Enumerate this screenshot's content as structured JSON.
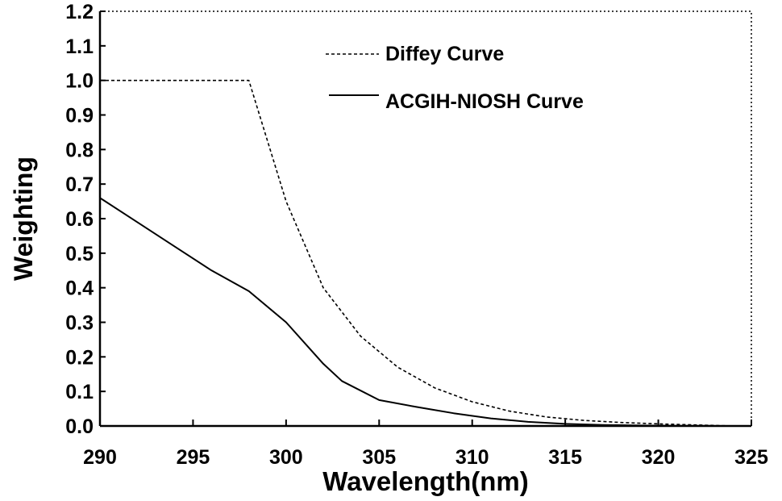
{
  "chart_data": {
    "type": "line",
    "title": "",
    "xlabel": "Wavelength(nm)",
    "ylabel": "Weighting",
    "xlim": [
      290,
      325
    ],
    "ylim": [
      0.0,
      1.2
    ],
    "x_ticks": [
      "290",
      "295",
      "300",
      "305",
      "310",
      "315",
      "320",
      "325"
    ],
    "y_ticks": [
      "0.0",
      "0.1",
      "0.2",
      "0.3",
      "0.4",
      "0.5",
      "0.6",
      "0.7",
      "0.8",
      "0.9",
      "1.0",
      "1.1",
      "1.2"
    ],
    "grid": false,
    "legend_position": "top-right",
    "series": [
      {
        "name": "Diffey Curve",
        "style": "dashed",
        "x": [
          290,
          298,
          300,
          302,
          304,
          306,
          308,
          310,
          312,
          314,
          316,
          318,
          320,
          322,
          324
        ],
        "y": [
          1.0,
          1.0,
          0.65,
          0.4,
          0.26,
          0.17,
          0.11,
          0.07,
          0.043,
          0.026,
          0.016,
          0.01,
          0.006,
          0.003,
          0.0
        ]
      },
      {
        "name": "ACGIH-NIOSH Curve",
        "style": "solid",
        "x": [
          290,
          292,
          294,
          296,
          298,
          300,
          302,
          303,
          305,
          307,
          309,
          311,
          313,
          315,
          317,
          319,
          321,
          323
        ],
        "y": [
          0.66,
          0.59,
          0.52,
          0.45,
          0.39,
          0.3,
          0.18,
          0.13,
          0.075,
          0.055,
          0.037,
          0.022,
          0.012,
          0.006,
          0.003,
          0.0015,
          0.0008,
          0.0003
        ]
      }
    ]
  }
}
